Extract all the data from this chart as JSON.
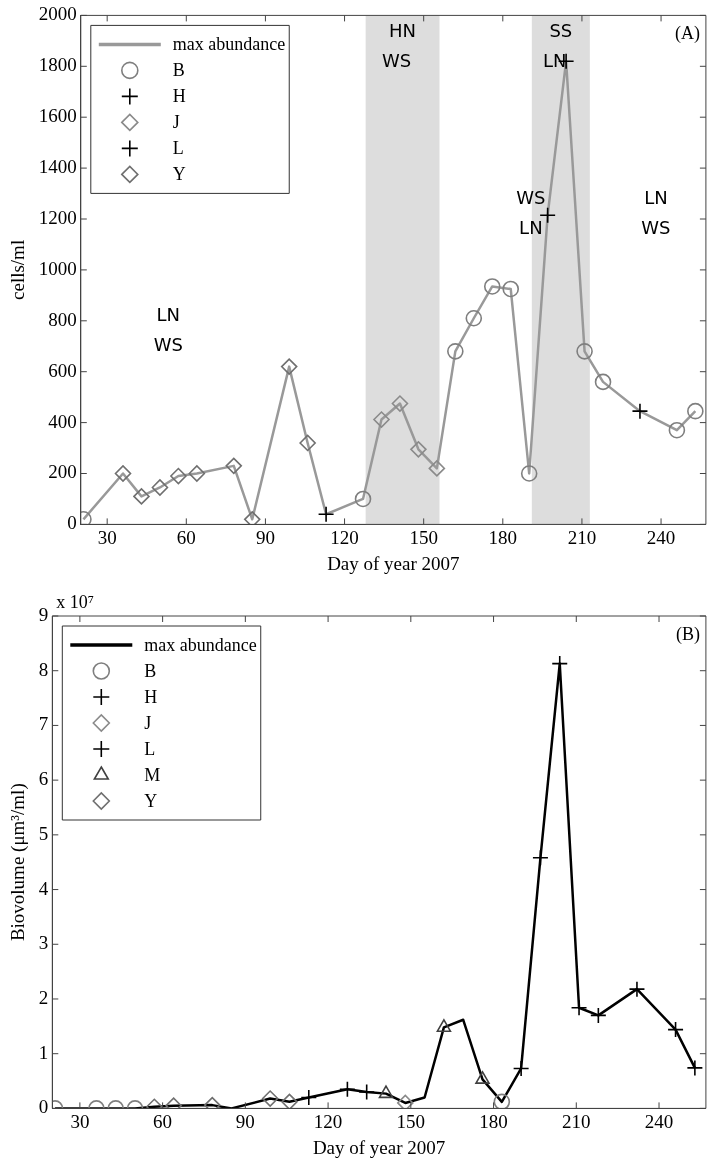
{
  "chart_data": [
    {
      "type": "line",
      "title": "(A)",
      "xlabel": "Day of year 2007",
      "ylabel": "cells/ml",
      "xlim": [
        20,
        257
      ],
      "xticks": [
        30,
        60,
        90,
        120,
        150,
        180,
        210,
        240
      ],
      "ylim": [
        0,
        2000
      ],
      "yticks": [
        0,
        200,
        400,
        600,
        800,
        1000,
        1200,
        1400,
        1600,
        1800,
        2000
      ],
      "grid": false,
      "legend": "top left",
      "bands": [
        {
          "axis": "x",
          "from": 128,
          "to": 156,
          "label": "HN\nWS",
          "color": "#dddddd"
        },
        {
          "axis": "x",
          "from": 191,
          "to": 213,
          "label": "SS\nLN",
          "color": "#dddddd"
        }
      ],
      "annotations": [
        "LN\nWS",
        "WS\nLN",
        "LN\nWS"
      ],
      "series": [
        {
          "name": "max abundance",
          "type": "line",
          "color": "#999999",
          "marker": "none",
          "x": [
            21,
            36,
            43,
            50,
            57,
            64,
            78,
            85,
            99,
            106,
            113,
            127,
            134,
            141,
            148,
            155,
            162,
            169,
            176,
            183,
            190,
            197,
            204,
            211,
            218,
            232,
            246,
            253
          ],
          "values": [
            20,
            200,
            110,
            145,
            190,
            200,
            230,
            20,
            620,
            320,
            40,
            100,
            412,
            475,
            295,
            220,
            680,
            810,
            935,
            925,
            200,
            1215,
            1820,
            680,
            560,
            445,
            370,
            445
          ]
        },
        {
          "name": "B",
          "type": "scatter",
          "color": "#7f7f7f",
          "marker": "circle",
          "x": [
            21,
            127,
            162,
            169,
            176,
            183,
            190,
            211,
            218,
            246,
            253
          ],
          "values": [
            20,
            100,
            680,
            810,
            935,
            925,
            200,
            680,
            560,
            370,
            445
          ]
        },
        {
          "name": "H",
          "type": "scatter",
          "color": "#000000",
          "marker": "cross",
          "x": [
            113,
            197,
            204
          ],
          "values": [
            40,
            1215,
            1820
          ]
        },
        {
          "name": "J",
          "type": "scatter",
          "color": "#8a8a8a",
          "marker": "diamond",
          "x": [
            134,
            141,
            148,
            155
          ],
          "values": [
            412,
            475,
            295,
            220
          ]
        },
        {
          "name": "L",
          "type": "scatter",
          "color": "#000000",
          "marker": "cross",
          "x": [
            232
          ],
          "values": [
            445
          ]
        },
        {
          "name": "Y",
          "type": "scatter",
          "color": "#6f6f6f",
          "marker": "diamond",
          "x": [
            36,
            43,
            50,
            57,
            64,
            78,
            85,
            99,
            106
          ],
          "values": [
            200,
            110,
            145,
            190,
            200,
            230,
            20,
            620,
            320
          ]
        }
      ]
    },
    {
      "type": "line",
      "title": "(B)",
      "xlabel": "Day of year 2007",
      "ylabel": "Biovolume (μm³/ml)",
      "xlim": [
        20,
        257
      ],
      "xticks": [
        30,
        60,
        90,
        120,
        150,
        180,
        210,
        240
      ],
      "ylim": [
        0,
        9
      ],
      "yticks": [
        0,
        1,
        2,
        3,
        4,
        5,
        6,
        7,
        8,
        9
      ],
      "grid": false,
      "legend": "top left",
      "annotations": [
        "x 10⁷"
      ],
      "series": [
        {
          "name": "max abundance",
          "type": "line",
          "color": "#000000",
          "marker": "none",
          "x": [
            21,
            36,
            43,
            50,
            57,
            64,
            78,
            85,
            99,
            106,
            113,
            127,
            134,
            141,
            148,
            155,
            162,
            169,
            176,
            183,
            190,
            197,
            204,
            211,
            218,
            232,
            246,
            253
          ],
          "values": [
            0,
            0,
            0,
            0,
            0.03,
            0.05,
            0.06,
            0,
            0.18,
            0.12,
            0.2,
            0.35,
            0.3,
            0.27,
            0.1,
            0.2,
            1.48,
            1.62,
            0.53,
            0.12,
            0.73,
            4.58,
            8.13,
            1.84,
            1.7,
            2.18,
            1.44,
            0.74
          ]
        },
        {
          "name": "B",
          "type": "scatter",
          "color": "#7f7f7f",
          "marker": "circle",
          "x": [
            21,
            36,
            43,
            50,
            183
          ],
          "values": [
            0,
            0,
            0,
            0,
            0.12
          ]
        },
        {
          "name": "H",
          "type": "scatter",
          "color": "#000000",
          "marker": "cross",
          "x": [
            113,
            127,
            134,
            190,
            197,
            204,
            211
          ],
          "values": [
            0.2,
            0.35,
            0.3,
            0.73,
            4.58,
            8.13,
            1.84
          ]
        },
        {
          "name": "J",
          "type": "scatter",
          "color": "#8a8a8a",
          "marker": "diamond",
          "x": [
            148
          ],
          "values": [
            0.1
          ]
        },
        {
          "name": "L",
          "type": "scatter",
          "color": "#000000",
          "marker": "cross",
          "x": [
            218,
            232,
            246,
            253
          ],
          "values": [
            1.7,
            2.18,
            1.44,
            0.74
          ]
        },
        {
          "name": "M",
          "type": "scatter",
          "color": "#404040",
          "marker": "triangle",
          "x": [
            141,
            162,
            176
          ],
          "values": [
            0.27,
            1.48,
            0.53
          ]
        },
        {
          "name": "Y",
          "type": "scatter",
          "color": "#6f6f6f",
          "marker": "diamond",
          "x": [
            57,
            64,
            78,
            99,
            106
          ],
          "values": [
            0.03,
            0.05,
            0.06,
            0.18,
            0.12
          ]
        }
      ]
    }
  ]
}
